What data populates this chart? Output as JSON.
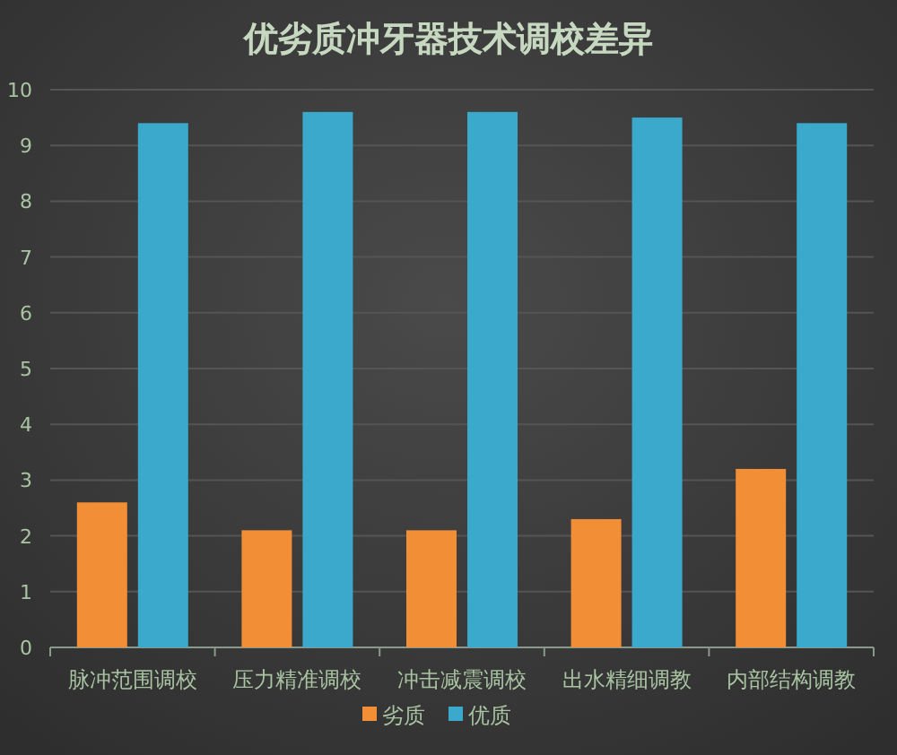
{
  "chart_data": {
    "type": "bar",
    "title": "优劣质冲牙器技术调校差异",
    "categories": [
      "脉冲范围调校",
      "压力精准调校",
      "冲击减震调校",
      "出水精细调教",
      "内部结构调教"
    ],
    "series": [
      {
        "name": "劣质",
        "color": "#f28e35",
        "values": [
          2.6,
          2.1,
          2.1,
          2.3,
          3.2
        ]
      },
      {
        "name": "优质",
        "color": "#3aa9cc",
        "values": [
          9.4,
          9.6,
          9.6,
          9.5,
          9.4
        ]
      }
    ],
    "ylim": [
      0,
      10
    ],
    "yticks": [
      0,
      1,
      2,
      3,
      4,
      5,
      6,
      7,
      8,
      9,
      10
    ],
    "grid": "y",
    "legend": "bottom"
  }
}
